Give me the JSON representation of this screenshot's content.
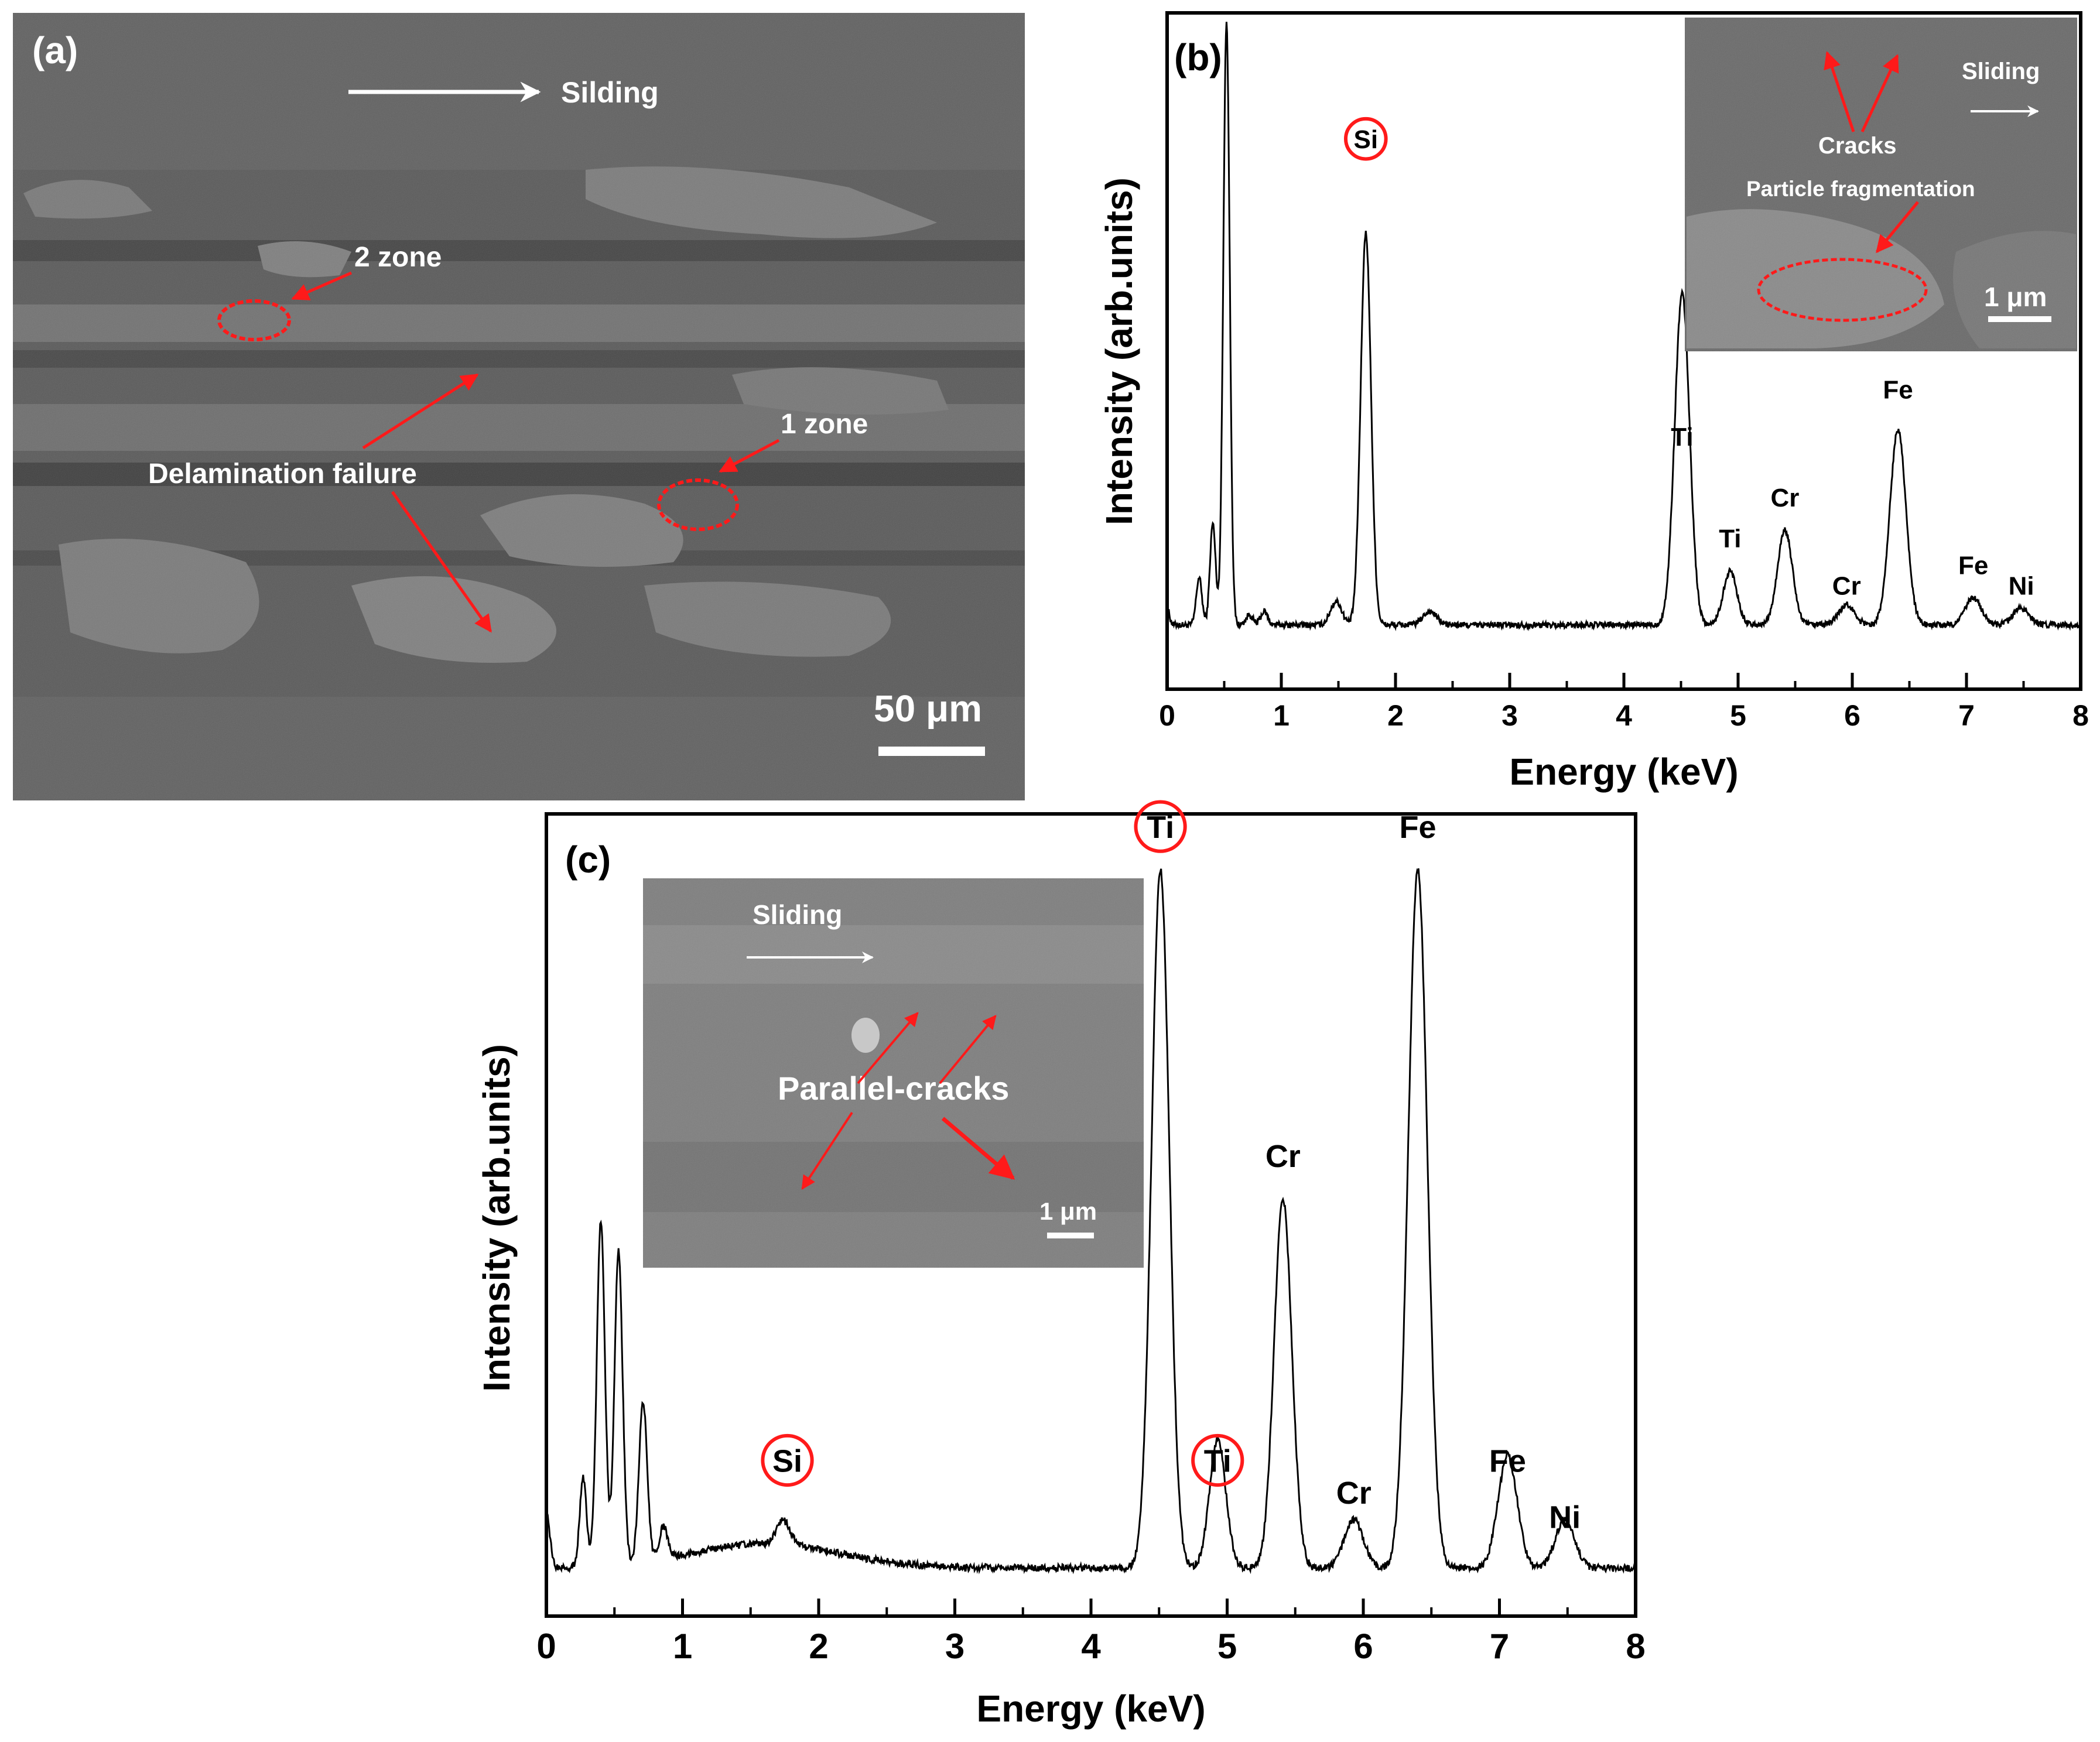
{
  "panels": {
    "a": {
      "label": "(a)",
      "direction_text": "Silding",
      "zone2": "2 zone",
      "zone1": "1 zone",
      "delamination": "Delamination failure",
      "scale": "50 μm"
    },
    "b": {
      "label": "(b)",
      "inset": {
        "cracks": "Cracks",
        "sliding": "Sliding",
        "particle": "Particle fragmentation",
        "scale": "1 μm"
      }
    },
    "c": {
      "label": "(c)",
      "inset": {
        "sliding": "Sliding",
        "parallel": "Parallel-cracks",
        "scale": "1 μm"
      }
    }
  },
  "colors": {
    "highlight": "#ff1a1a",
    "line": "#000000",
    "sem_bg": "#555555"
  },
  "chart_data": [
    {
      "type": "line",
      "panel": "b",
      "xlabel": "Energy (keV)",
      "ylabel": "Intensity (arb.units)",
      "xlim": [
        0,
        8
      ],
      "ylim": [
        0,
        100
      ],
      "xticks": [
        "0",
        "1",
        "2",
        "3",
        "4",
        "5",
        "6",
        "7",
        "8"
      ],
      "baseline": 9.5,
      "peaks": [
        {
          "x": 0.0,
          "h": 2.5,
          "w": 0.02
        },
        {
          "x": 0.28,
          "h": 7,
          "w": 0.025
        },
        {
          "x": 0.4,
          "h": 15,
          "w": 0.025
        },
        {
          "x": 0.52,
          "h": 89,
          "w": 0.028
        },
        {
          "x": 0.72,
          "h": 1.5,
          "w": 0.03
        },
        {
          "x": 0.85,
          "h": 2,
          "w": 0.03
        },
        {
          "x": 1.48,
          "h": 3.5,
          "w": 0.05
        },
        {
          "x": 1.74,
          "h": 58,
          "w": 0.045
        },
        {
          "x": 2.3,
          "h": 2,
          "w": 0.06
        },
        {
          "x": 4.51,
          "h": 49,
          "w": 0.065
        },
        {
          "x": 4.93,
          "h": 8,
          "w": 0.06
        },
        {
          "x": 5.41,
          "h": 14,
          "w": 0.065
        },
        {
          "x": 5.95,
          "h": 3,
          "w": 0.07
        },
        {
          "x": 6.4,
          "h": 29,
          "w": 0.07
        },
        {
          "x": 7.06,
          "h": 4,
          "w": 0.07
        },
        {
          "x": 7.48,
          "h": 2.5,
          "w": 0.07
        }
      ],
      "annotations": [
        {
          "text": "Si",
          "x": 1.74,
          "y": 80,
          "circled": true
        },
        {
          "text": "Ti",
          "x": 4.51,
          "y": 36
        },
        {
          "text": "Ti",
          "x": 4.93,
          "y": 21
        },
        {
          "text": "Cr",
          "x": 5.41,
          "y": 27
        },
        {
          "text": "Cr",
          "x": 5.95,
          "y": 14
        },
        {
          "text": "Fe",
          "x": 6.4,
          "y": 43
        },
        {
          "text": "Fe",
          "x": 7.06,
          "y": 17
        },
        {
          "text": "Ni",
          "x": 7.48,
          "y": 14
        }
      ]
    },
    {
      "type": "line",
      "panel": "c",
      "xlabel": "Energy (keV)",
      "ylabel": "Intensity (arb.units)",
      "xlim": [
        0,
        8
      ],
      "ylim": [
        0,
        100
      ],
      "xticks": [
        "0",
        "1",
        "2",
        "3",
        "4",
        "5",
        "6",
        "7",
        "8"
      ],
      "baseline": 6,
      "peaks": [
        {
          "x": 0.0,
          "h": 7,
          "w": 0.025
        },
        {
          "x": 0.27,
          "h": 11,
          "w": 0.025
        },
        {
          "x": 0.4,
          "h": 43,
          "w": 0.03
        },
        {
          "x": 0.53,
          "h": 39,
          "w": 0.03
        },
        {
          "x": 0.71,
          "h": 20,
          "w": 0.03
        },
        {
          "x": 0.86,
          "h": 4,
          "w": 0.03
        },
        {
          "x": 1.6,
          "h": 3,
          "w": 0.55
        },
        {
          "x": 1.74,
          "h": 3,
          "w": 0.05
        },
        {
          "x": 4.51,
          "h": 87,
          "w": 0.065
        },
        {
          "x": 4.93,
          "h": 16,
          "w": 0.06
        },
        {
          "x": 5.41,
          "h": 46,
          "w": 0.065
        },
        {
          "x": 5.93,
          "h": 6,
          "w": 0.07
        },
        {
          "x": 6.4,
          "h": 87,
          "w": 0.07
        },
        {
          "x": 7.06,
          "h": 14,
          "w": 0.07
        },
        {
          "x": 7.48,
          "h": 6,
          "w": 0.07
        }
      ],
      "annotations": [
        {
          "text": "Si",
          "x": 1.77,
          "y": 18,
          "circled": true
        },
        {
          "text": "Ti",
          "x": 4.51,
          "y": 97,
          "circled": true
        },
        {
          "text": "Ti",
          "x": 4.93,
          "y": 18,
          "circled": true
        },
        {
          "text": "Cr",
          "x": 5.41,
          "y": 56
        },
        {
          "text": "Cr",
          "x": 5.93,
          "y": 14
        },
        {
          "text": "Fe",
          "x": 6.4,
          "y": 97
        },
        {
          "text": "Fe",
          "x": 7.06,
          "y": 18
        },
        {
          "text": "Ni",
          "x": 7.48,
          "y": 11
        }
      ]
    }
  ]
}
